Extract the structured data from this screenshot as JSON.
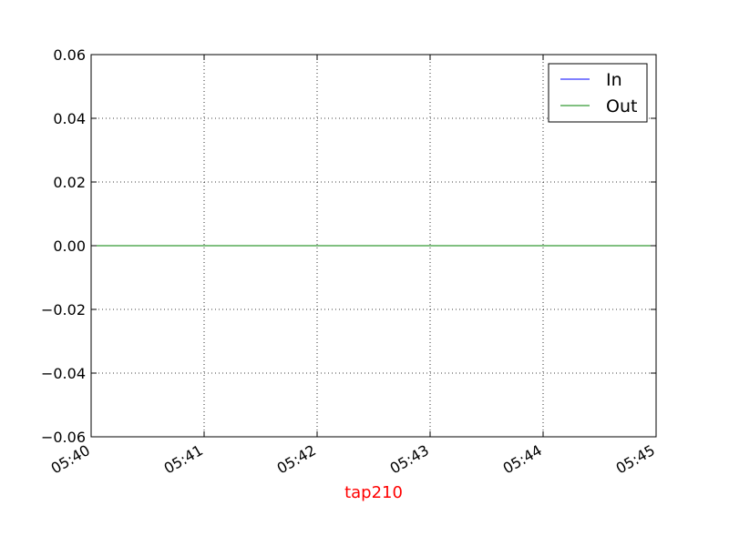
{
  "chart_data": {
    "type": "line",
    "title": "",
    "xlabel": "tap210",
    "ylabel": "",
    "x": [
      "05:40",
      "05:41",
      "05:42",
      "05:43",
      "05:44",
      "05:45"
    ],
    "xlim": [
      "05:40",
      "05:45"
    ],
    "ylim": [
      -0.06,
      0.06
    ],
    "y_ticks": [
      0.06,
      0.04,
      0.02,
      0.0,
      -0.02,
      -0.04,
      -0.06
    ],
    "y_tick_labels": [
      "0.06",
      "0.04",
      "0.02",
      "0.00",
      "−0.02",
      "−0.04",
      "−0.06"
    ],
    "x_tick_labels": [
      "05:40",
      "05:41",
      "05:42",
      "05:43",
      "05:44",
      "05:45"
    ],
    "series": [
      {
        "name": "In",
        "color": "#0000ff",
        "values": [
          0,
          0,
          0,
          0,
          0,
          0
        ]
      },
      {
        "name": "Out",
        "color": "#008000",
        "values": [
          0,
          0,
          0,
          0,
          0,
          0
        ]
      }
    ],
    "grid": true,
    "legend_position": "top-right",
    "xlabel_color": "#ff0000"
  }
}
